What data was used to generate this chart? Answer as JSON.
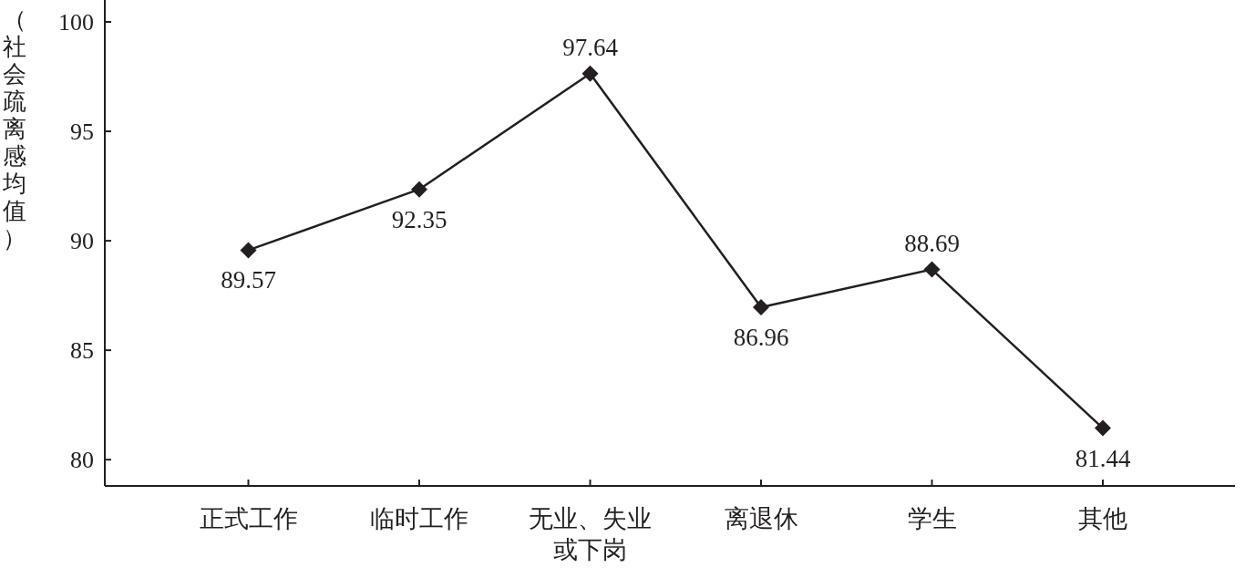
{
  "chart_data": {
    "type": "line",
    "ylabel": "（社会疏离感均值）",
    "categories": [
      "正式工作",
      "临时工作",
      "无业、失业或下岗",
      "离退休",
      "学生",
      "其他"
    ],
    "series": [
      {
        "color": "#231f20",
        "values": [
          89.57,
          92.35,
          97.64,
          86.96,
          88.69,
          81.44
        ]
      }
    ],
    "ylim": [
      78.8,
      101
    ],
    "yticks": [
      80,
      85,
      90,
      95,
      100
    ],
    "marker": "diamond",
    "line_style": "solid",
    "data_labels": true,
    "grid": false
  }
}
